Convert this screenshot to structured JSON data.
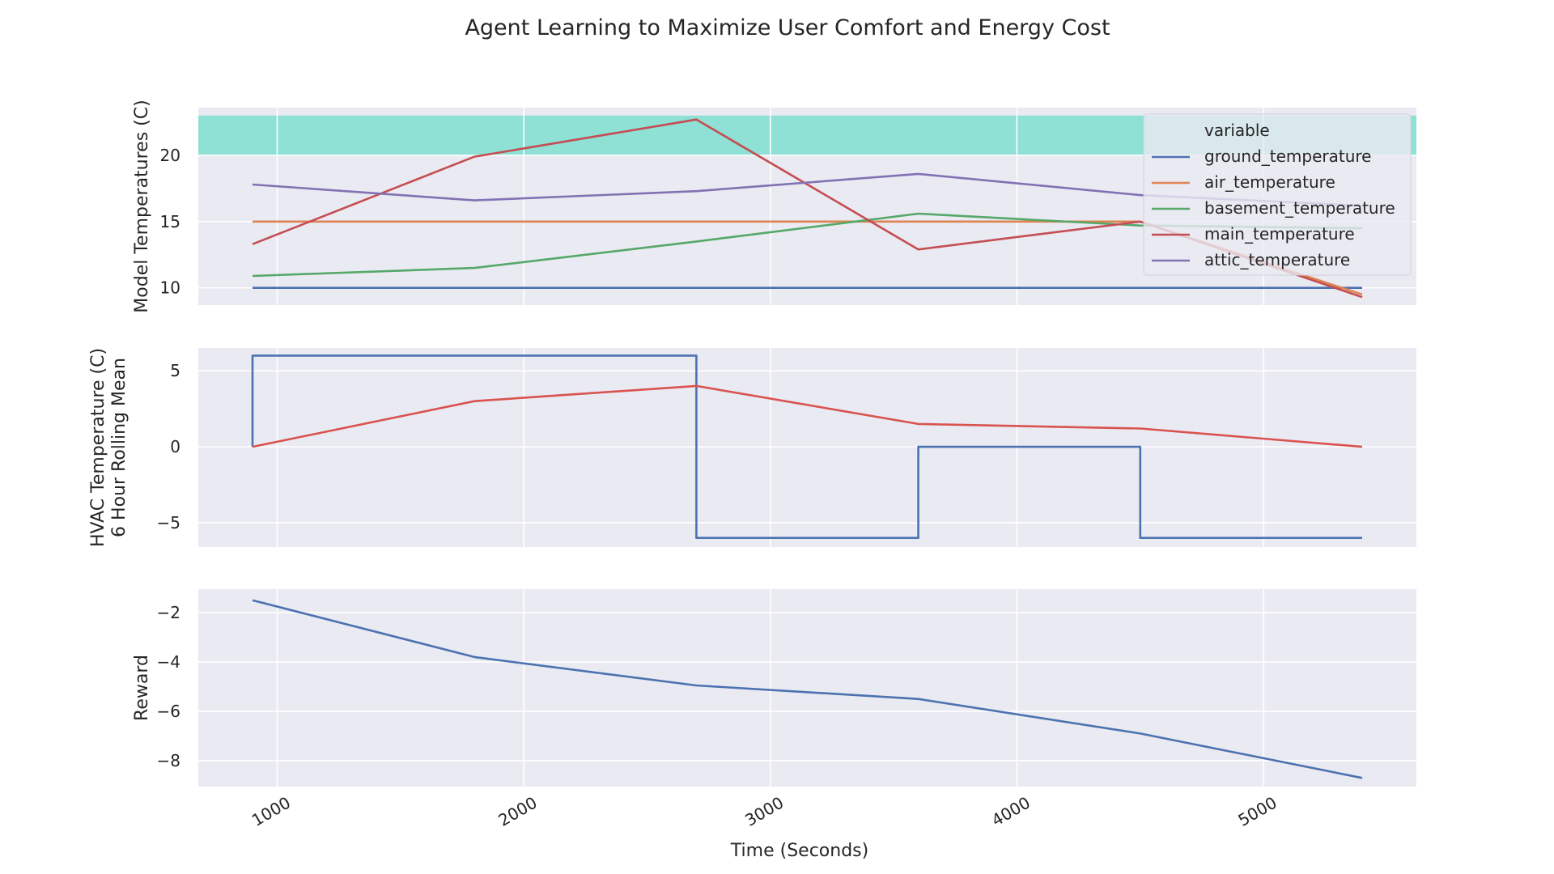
{
  "title": "Agent Learning to Maximize User Comfort and Energy Cost",
  "xlabel": "Time (Seconds)",
  "colors": {
    "panel_bg": "#eaeaf2",
    "grid": "#ffffff",
    "comfort_band": "#8fe0d5",
    "blue": "#4c72b0",
    "orange": "#dd8452",
    "green": "#55a868",
    "red": "#c44e52",
    "purple": "#8172b3",
    "hvac_red": "#d9534f"
  },
  "chart_data": [
    {
      "type": "line",
      "ylabel": "Model Temperatures (C)",
      "xlim": [
        680,
        5620
      ],
      "ylim": [
        8.7,
        23.6
      ],
      "x_ticks": [
        1000,
        2000,
        3000,
        4000,
        5000
      ],
      "y_ticks": [
        10,
        15,
        20
      ],
      "comfort_band": [
        20,
        23
      ],
      "legend": {
        "title": "variable",
        "placement": "top-right"
      },
      "series": [
        {
          "name": "ground_temperature",
          "color": "#4c72b0",
          "x": [
            900,
            1800,
            2700,
            3600,
            4500,
            5400
          ],
          "values": [
            10,
            10,
            10,
            10,
            10,
            10
          ]
        },
        {
          "name": "air_temperature",
          "color": "#dd8452",
          "x": [
            900,
            1800,
            2700,
            3600,
            4500,
            5400
          ],
          "values": [
            15,
            15,
            15,
            15,
            15,
            9.5
          ]
        },
        {
          "name": "basement_temperature",
          "color": "#55a868",
          "x": [
            900,
            1800,
            2700,
            3600,
            4500,
            5400
          ],
          "values": [
            10.9,
            11.5,
            13.5,
            15.6,
            14.7,
            14.5
          ]
        },
        {
          "name": "main_temperature",
          "color": "#c44e52",
          "x": [
            900,
            1800,
            2700,
            3600,
            4500,
            5400
          ],
          "values": [
            13.3,
            19.9,
            22.7,
            12.9,
            15.0,
            9.3
          ]
        },
        {
          "name": "attic_temperature",
          "color": "#8172b3",
          "x": [
            900,
            1800,
            2700,
            3600,
            4500,
            5400
          ],
          "values": [
            17.8,
            16.6,
            17.3,
            18.6,
            17.0,
            16.2
          ]
        }
      ]
    },
    {
      "type": "line",
      "ylabel": "HVAC Temperature (C)\n6 Hour Rolling Mean",
      "xlim": [
        680,
        5620
      ],
      "ylim": [
        -6.6,
        6.5
      ],
      "x_ticks": [
        1000,
        2000,
        3000,
        4000,
        5000
      ],
      "y_ticks": [
        -5,
        0,
        5
      ],
      "series": [
        {
          "name": "",
          "color": "#4c72b0",
          "x": [
            900,
            900,
            2700,
            2700,
            3600,
            3600,
            4500,
            4500,
            5400
          ],
          "values": [
            0,
            6,
            6,
            -6,
            -6,
            0,
            0,
            -6,
            -6
          ]
        },
        {
          "name": "",
          "color": "#d9534f",
          "x": [
            900,
            1800,
            2700,
            3600,
            4500,
            5400
          ],
          "values": [
            0,
            3,
            4,
            1.5,
            1.2,
            0
          ]
        }
      ]
    },
    {
      "type": "line",
      "ylabel": "Reward",
      "xlim": [
        680,
        5620
      ],
      "ylim": [
        -9.05,
        -1.05
      ],
      "x_ticks": [
        1000,
        2000,
        3000,
        4000,
        5000
      ],
      "y_ticks": [
        -8,
        -6,
        -4,
        -2
      ],
      "series": [
        {
          "name": "",
          "color": "#4c72b0",
          "x": [
            900,
            1800,
            2700,
            3600,
            4500,
            5400
          ],
          "values": [
            -1.5,
            -3.8,
            -4.95,
            -5.5,
            -6.9,
            -8.7
          ]
        }
      ]
    }
  ]
}
